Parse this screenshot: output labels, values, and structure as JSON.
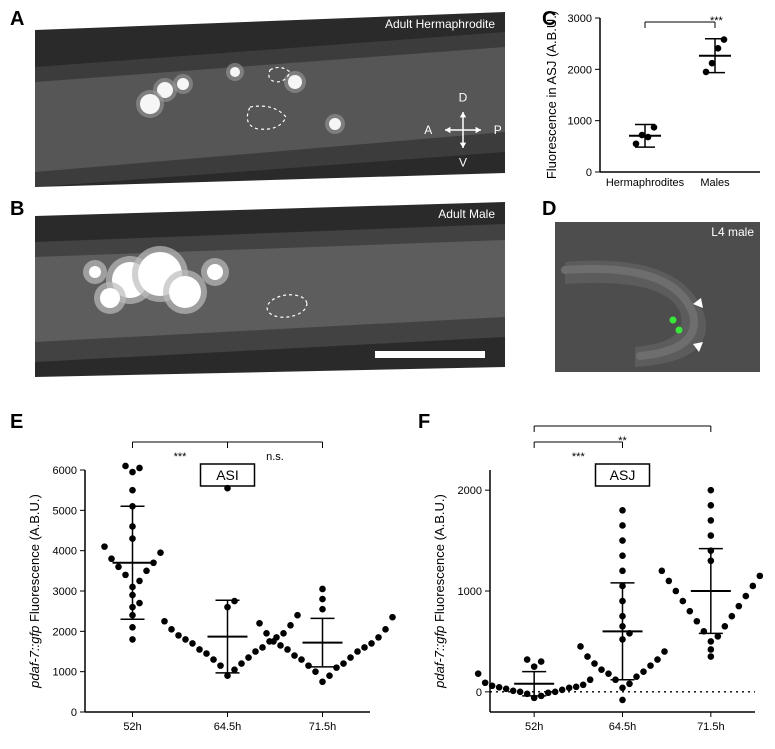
{
  "labels": {
    "A": "A",
    "B": "B",
    "C": "C",
    "D": "D",
    "E": "E",
    "F": "F"
  },
  "panelA": {
    "caption": "Adult Hermaphrodite",
    "compass": {
      "D": "D",
      "V": "V",
      "A": "A",
      "P": "P"
    },
    "bg": "#2a2a2a",
    "bright": "#f6f6f6",
    "mid": "#6a6a6a"
  },
  "panelB": {
    "caption": "Adult Male",
    "bg": "#2a2a2a"
  },
  "panelD": {
    "caption": "L4 male",
    "bg": "#4d4d4d",
    "arrow": "#ffffff",
    "dot": "#39e639"
  },
  "panelC": {
    "title_fontsize": 12,
    "ylabel": "Fluorescence in ASJ (A.B.U.)",
    "ylim": [
      0,
      3000
    ],
    "yticks": [
      0,
      1000,
      2000,
      3000
    ],
    "categories": [
      "Hermaphrodites",
      "Males"
    ],
    "points": {
      "Hermaphrodites": [
        550,
        720,
        680,
        870
      ],
      "Males": [
        1950,
        2120,
        2410,
        2580
      ]
    },
    "means": {
      "Hermaphrodites": 705,
      "Males": 2265
    },
    "sd": {
      "Hermaphrodites": 220,
      "Males": 330
    },
    "sig": "***",
    "point_color": "#000000",
    "axis_color": "#000000"
  },
  "panelE": {
    "celltype": "ASI",
    "ylabel_line1": "pdaf-7::gfp",
    "ylabel_line2": " Fluorescence (A.B.U.)",
    "ylim": [
      0,
      6000
    ],
    "yticks": [
      0,
      1000,
      2000,
      3000,
      4000,
      5000,
      6000
    ],
    "categories": [
      "52h",
      "64.5h",
      "71.5h"
    ],
    "points": {
      "52h": [
        1800,
        2100,
        2400,
        2600,
        2700,
        2900,
        3100,
        3250,
        3400,
        3500,
        3600,
        3700,
        3800,
        3950,
        4100,
        4300,
        4600,
        5100,
        5500,
        5950,
        6050,
        6100
      ],
      "64.5h": [
        900,
        1050,
        1150,
        1200,
        1300,
        1350,
        1450,
        1500,
        1550,
        1600,
        1700,
        1750,
        1800,
        1850,
        1900,
        1950,
        2050,
        2150,
        2250,
        2400,
        2600,
        2750,
        5550
      ],
      "71.5h": [
        750,
        900,
        1000,
        1100,
        1150,
        1200,
        1300,
        1350,
        1400,
        1500,
        1550,
        1600,
        1650,
        1700,
        1750,
        1850,
        1950,
        2050,
        2200,
        2350,
        2550,
        2800,
        3050
      ]
    },
    "means": {
      "52h": 3700,
      "64.5h": 1870,
      "71.5h": 1720
    },
    "sd": {
      "52h": 1400,
      "64.5h": 900,
      "71.5h": 600
    },
    "sig": [
      {
        "from": 0,
        "to": 1,
        "label": "***"
      },
      {
        "from": 1,
        "to": 2,
        "label": "n.s."
      }
    ],
    "point_color": "#000000"
  },
  "panelF": {
    "celltype": "ASJ",
    "ylabel_line1": "pdaf-7::gfp",
    "ylabel_line2": " Fluorescence (A.B.U.)",
    "ylim": [
      -200,
      2200
    ],
    "yticks": [
      0,
      1000,
      2000
    ],
    "zeroline_dash": true,
    "categories": [
      "52h",
      "64.5h",
      "71.5h"
    ],
    "points": {
      "52h": [
        -60,
        -40,
        -20,
        -10,
        0,
        0,
        10,
        20,
        30,
        40,
        45,
        50,
        60,
        70,
        90,
        120,
        180,
        250,
        300,
        320
      ],
      "64.5h": [
        -80,
        40,
        80,
        120,
        150,
        180,
        200,
        220,
        260,
        280,
        320,
        350,
        400,
        450,
        520,
        580,
        650,
        750,
        900,
        1050,
        1200,
        1350,
        1500,
        1650,
        1800
      ],
      "71.5h": [
        350,
        420,
        500,
        550,
        600,
        650,
        700,
        750,
        800,
        850,
        900,
        950,
        1000,
        1050,
        1100,
        1150,
        1200,
        1300,
        1400,
        1550,
        1700,
        1850,
        2000
      ]
    },
    "means": {
      "52h": 80,
      "64.5h": 600,
      "71.5h": 1000
    },
    "sd": {
      "52h": 120,
      "64.5h": 480,
      "71.5h": 420
    },
    "sig": [
      {
        "from": 0,
        "to": 1,
        "label": "***"
      },
      {
        "from": 0,
        "to": 2,
        "label": "**",
        "level": 1
      }
    ],
    "point_color": "#000000"
  },
  "colors": {
    "axis": "#000000",
    "dashed": "#7a7a7a"
  }
}
